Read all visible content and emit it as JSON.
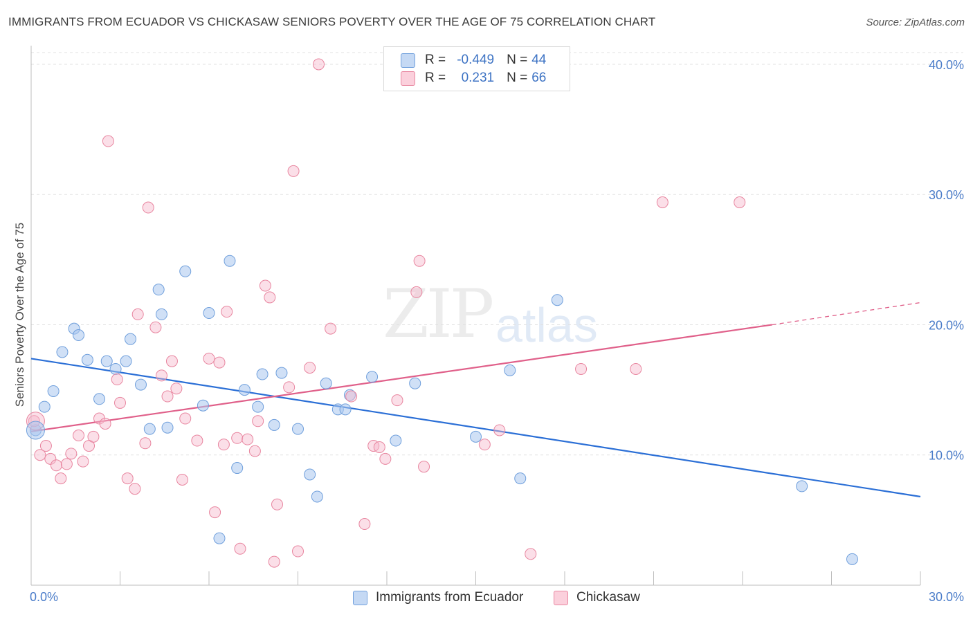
{
  "header": {
    "title": "IMMIGRANTS FROM ECUADOR VS CHICKASAW SENIORS POVERTY OVER THE AGE OF 75 CORRELATION CHART",
    "source": "Source: ZipAtlas.com"
  },
  "legend": {
    "rows": [
      {
        "r_label": "R = ",
        "r_value": "-0.449",
        "n_label": "N = ",
        "n_value": "44",
        "color": "#aac7ef"
      },
      {
        "r_label": "R = ",
        "r_value": "0.231",
        "n_label": "N = ",
        "n_value": "66",
        "color": "#f7b8cb"
      }
    ]
  },
  "watermark": {
    "zip": "ZIP",
    "atlas": "atlas"
  },
  "chart_data": {
    "type": "scatter",
    "title": "IMMIGRANTS FROM ECUADOR VS CHICKASAW SENIORS POVERTY OVER THE AGE OF 75 CORRELATION CHART",
    "xlabel": "",
    "ylabel": "Seniors Poverty Over the Age of 75",
    "xlim": [
      0,
      30
    ],
    "ylim": [
      0,
      40.9
    ],
    "x_tick_labels": [
      "0.0%",
      "30.0%"
    ],
    "y_ticks": [
      10,
      20,
      30,
      40
    ],
    "y_tick_labels": [
      "10.0%",
      "20.0%",
      "30.0%",
      "40.0%"
    ],
    "grid": true,
    "legend_position": "bottom",
    "series": [
      {
        "name": "Immigrants from Ecuador",
        "color": "#aac7ef",
        "stroke": "#6f9fdc",
        "trend": {
          "x": [
            0,
            30
          ],
          "y": [
            17.4,
            6.8
          ],
          "color": "#2b6fd6"
        },
        "points": [
          [
            0.15,
            11.9
          ],
          [
            0.45,
            13.7
          ],
          [
            0.75,
            14.9
          ],
          [
            1.05,
            17.9
          ],
          [
            1.45,
            19.7
          ],
          [
            1.6,
            19.2
          ],
          [
            1.9,
            17.3
          ],
          [
            2.3,
            14.3
          ],
          [
            2.55,
            17.2
          ],
          [
            2.85,
            16.6
          ],
          [
            3.2,
            17.2
          ],
          [
            3.35,
            18.9
          ],
          [
            3.7,
            15.4
          ],
          [
            4.0,
            12.0
          ],
          [
            4.3,
            22.7
          ],
          [
            4.4,
            20.8
          ],
          [
            4.6,
            12.1
          ],
          [
            5.2,
            24.1
          ],
          [
            5.8,
            13.8
          ],
          [
            6.0,
            20.9
          ],
          [
            6.35,
            3.6
          ],
          [
            6.7,
            24.9
          ],
          [
            6.95,
            9.0
          ],
          [
            7.2,
            15.0
          ],
          [
            7.65,
            13.7
          ],
          [
            7.8,
            16.2
          ],
          [
            8.2,
            12.3
          ],
          [
            8.45,
            16.3
          ],
          [
            9.0,
            12.0
          ],
          [
            9.4,
            8.5
          ],
          [
            9.65,
            6.8
          ],
          [
            9.95,
            15.5
          ],
          [
            10.35,
            13.5
          ],
          [
            10.6,
            13.5
          ],
          [
            10.75,
            14.6
          ],
          [
            11.5,
            16.0
          ],
          [
            12.3,
            11.1
          ],
          [
            12.95,
            15.5
          ],
          [
            15.0,
            11.4
          ],
          [
            16.15,
            16.5
          ],
          [
            16.5,
            8.2
          ],
          [
            17.75,
            21.9
          ],
          [
            26.0,
            7.6
          ],
          [
            27.7,
            2.0
          ]
        ]
      },
      {
        "name": "Chickasaw",
        "color": "#f7b8cb",
        "stroke": "#e8859f",
        "trend": {
          "x": [
            0,
            25
          ],
          "y": [
            11.8,
            20.0
          ],
          "dash_x": [
            25,
            30
          ],
          "dash_y": [
            20.0,
            21.7
          ],
          "color": "#e0608a"
        },
        "points": [
          [
            0.1,
            12.6
          ],
          [
            0.3,
            10.0
          ],
          [
            0.5,
            10.7
          ],
          [
            0.65,
            9.7
          ],
          [
            0.85,
            9.2
          ],
          [
            1.0,
            8.2
          ],
          [
            1.2,
            9.3
          ],
          [
            1.35,
            10.1
          ],
          [
            1.6,
            11.5
          ],
          [
            1.75,
            9.5
          ],
          [
            1.95,
            10.7
          ],
          [
            2.1,
            11.4
          ],
          [
            2.3,
            12.8
          ],
          [
            2.5,
            12.4
          ],
          [
            2.6,
            34.1
          ],
          [
            2.9,
            15.8
          ],
          [
            3.0,
            14.0
          ],
          [
            3.25,
            8.2
          ],
          [
            3.5,
            7.4
          ],
          [
            3.6,
            20.8
          ],
          [
            3.85,
            10.9
          ],
          [
            3.95,
            29.0
          ],
          [
            4.2,
            19.8
          ],
          [
            4.4,
            16.1
          ],
          [
            4.6,
            14.5
          ],
          [
            4.75,
            17.2
          ],
          [
            4.9,
            15.1
          ],
          [
            5.1,
            8.1
          ],
          [
            5.2,
            12.8
          ],
          [
            5.6,
            11.1
          ],
          [
            6.0,
            17.4
          ],
          [
            6.2,
            5.6
          ],
          [
            6.35,
            17.1
          ],
          [
            6.5,
            10.8
          ],
          [
            6.6,
            21.0
          ],
          [
            6.95,
            11.3
          ],
          [
            7.05,
            2.8
          ],
          [
            7.3,
            11.2
          ],
          [
            7.55,
            10.3
          ],
          [
            7.65,
            12.6
          ],
          [
            7.9,
            23.0
          ],
          [
            8.05,
            22.1
          ],
          [
            8.2,
            1.8
          ],
          [
            8.3,
            6.2
          ],
          [
            8.7,
            15.2
          ],
          [
            8.85,
            31.8
          ],
          [
            9.0,
            2.6
          ],
          [
            9.4,
            16.7
          ],
          [
            9.7,
            40.0
          ],
          [
            10.1,
            19.7
          ],
          [
            10.8,
            14.5
          ],
          [
            11.25,
            4.7
          ],
          [
            11.55,
            10.7
          ],
          [
            11.75,
            10.6
          ],
          [
            11.95,
            9.7
          ],
          [
            12.35,
            14.2
          ],
          [
            13.0,
            22.5
          ],
          [
            13.1,
            24.9
          ],
          [
            13.25,
            9.1
          ],
          [
            15.3,
            10.8
          ],
          [
            15.8,
            11.9
          ],
          [
            16.85,
            2.4
          ],
          [
            18.55,
            16.6
          ],
          [
            20.4,
            16.6
          ],
          [
            21.3,
            29.4
          ],
          [
            23.9,
            29.4
          ]
        ]
      }
    ]
  }
}
